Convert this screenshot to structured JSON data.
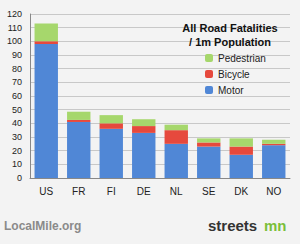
{
  "chart_data": {
    "type": "bar",
    "title": "All Road Fatalities\n/ 1m Population",
    "categories": [
      "US",
      "FR",
      "FI",
      "DE",
      "NL",
      "SE",
      "DK",
      "NO"
    ],
    "series": [
      {
        "name": "Motor",
        "color": "#5087d6",
        "values": [
          98,
          41,
          36,
          33,
          25,
          23,
          17,
          24
        ]
      },
      {
        "name": "Bicycle",
        "color": "#e6493d",
        "values": [
          2,
          1.5,
          4,
          5,
          10,
          3,
          6,
          1
        ]
      },
      {
        "name": "Pedestrian",
        "color": "#a6d76c",
        "values": [
          13,
          6,
          6,
          5,
          4,
          3,
          6,
          3
        ]
      }
    ],
    "stacked": true,
    "ylim": [
      0,
      120
    ],
    "yticks": [
      0,
      10,
      20,
      30,
      40,
      50,
      60,
      70,
      80,
      90,
      100,
      110,
      120
    ],
    "grid": true,
    "legend": "top-right",
    "annotations": [
      "LocalMile.org",
      "streets",
      "mn"
    ]
  }
}
